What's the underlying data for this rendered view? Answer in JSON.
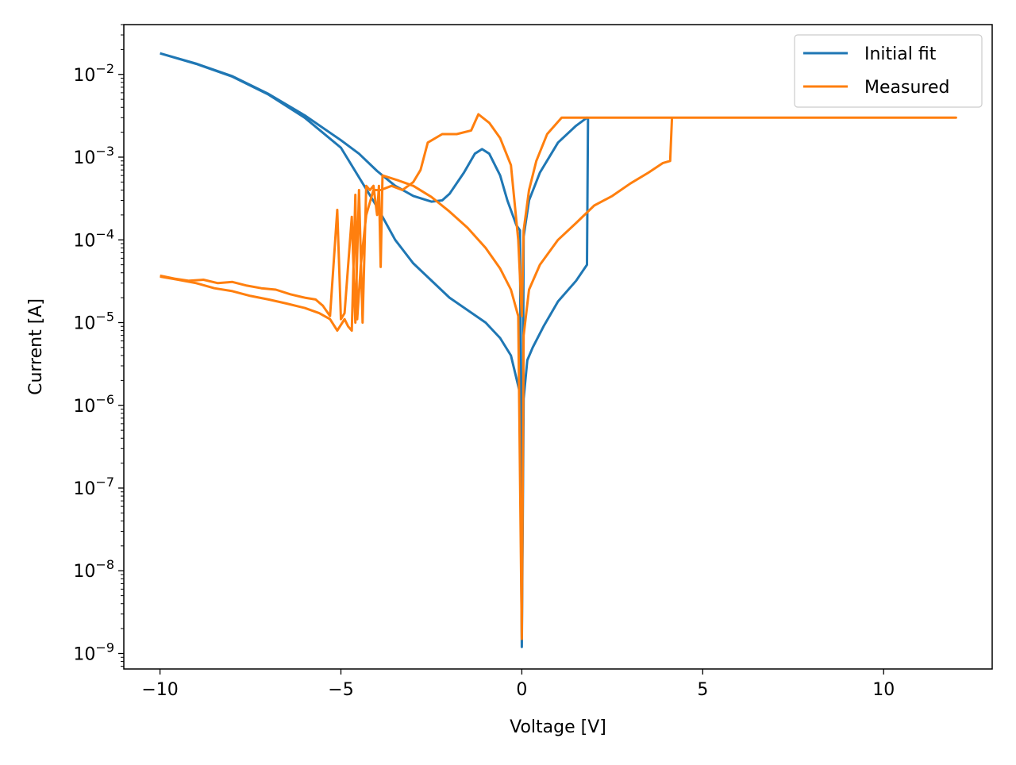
{
  "chart_data": {
    "type": "line",
    "xlabel": "Voltage [V]",
    "ylabel": "Current [A]",
    "xlim": [
      -11.0,
      13.0
    ],
    "ylim": [
      6.5e-10,
      0.04
    ],
    "yscale": "log",
    "grid": false,
    "legend_position": "top-right",
    "x_ticks": [
      -10,
      -5,
      0,
      5,
      10
    ],
    "x_tick_labels": [
      "−10",
      "−5",
      "0",
      "5",
      "10"
    ],
    "y_ticks": [
      1e-09,
      1e-08,
      1e-07,
      1e-06,
      1e-05,
      0.0001,
      0.001,
      0.01
    ],
    "y_tick_exponents": [
      "−9",
      "−8",
      "−7",
      "−6",
      "−5",
      "−4",
      "−3",
      "−2"
    ],
    "y_tick_base": "10",
    "series": [
      {
        "name": "Initial fit",
        "color": "#1f77b4",
        "points": [
          [
            -10,
            0.018
          ],
          [
            -9,
            0.0135
          ],
          [
            -8,
            0.0095
          ],
          [
            -7,
            0.0058
          ],
          [
            -6,
            0.0032
          ],
          [
            -5,
            0.0016
          ],
          [
            -4.5,
            0.0011
          ],
          [
            -4,
            0.00068
          ],
          [
            -3.5,
            0.00045
          ],
          [
            -3,
            0.00034
          ],
          [
            -2.5,
            0.00029
          ],
          [
            -2.2,
            0.0003
          ],
          [
            -2,
            0.00036
          ],
          [
            -1.6,
            0.00065
          ],
          [
            -1.3,
            0.0011
          ],
          [
            -1.1,
            0.00125
          ],
          [
            -0.9,
            0.0011
          ],
          [
            -0.6,
            0.0006
          ],
          [
            -0.4,
            0.0003
          ],
          [
            -0.15,
            0.00015
          ],
          [
            -0.05,
            0.00013
          ],
          [
            0,
            1.2e-09
          ],
          [
            0.05,
            0.00011
          ],
          [
            0.2,
            0.0003
          ],
          [
            0.5,
            0.00065
          ],
          [
            1,
            0.0015
          ],
          [
            1.5,
            0.0024
          ],
          [
            1.8,
            0.003
          ],
          [
            1.83,
            0.0029
          ],
          [
            1.8,
            5e-05
          ],
          [
            1.5,
            3.2e-05
          ],
          [
            1,
            1.8e-05
          ],
          [
            0.6,
            9e-06
          ],
          [
            0.3,
            5e-06
          ],
          [
            0.15,
            3.5e-06
          ],
          [
            0.05,
            1.2e-06
          ],
          [
            0,
            1.2e-09
          ],
          [
            -0.05,
            1.4e-06
          ],
          [
            -0.3,
            4e-06
          ],
          [
            -0.6,
            6.5e-06
          ],
          [
            -1,
            1e-05
          ],
          [
            -2,
            2e-05
          ],
          [
            -3,
            5.2e-05
          ],
          [
            -3.5,
            0.0001
          ],
          [
            -4,
            0.00025
          ],
          [
            -5,
            0.0013
          ],
          [
            -6,
            0.003
          ],
          [
            -7,
            0.0057
          ],
          [
            -8,
            0.0094
          ],
          [
            -9,
            0.0134
          ],
          [
            -10,
            0.018
          ]
        ]
      },
      {
        "name": "Measured",
        "color": "#ff7f0e",
        "points": [
          [
            -10,
            3.7e-05
          ],
          [
            -9.6,
            3.4e-05
          ],
          [
            -9.2,
            3.2e-05
          ],
          [
            -8.8,
            3.3e-05
          ],
          [
            -8.4,
            3e-05
          ],
          [
            -8,
            3.1e-05
          ],
          [
            -7.6,
            2.8e-05
          ],
          [
            -7.2,
            2.6e-05
          ],
          [
            -6.8,
            2.5e-05
          ],
          [
            -6.4,
            2.2e-05
          ],
          [
            -6,
            2e-05
          ],
          [
            -5.7,
            1.9e-05
          ],
          [
            -5.5,
            1.6e-05
          ],
          [
            -5.3,
            1.2e-05
          ],
          [
            -5.1,
            0.00023
          ],
          [
            -5,
            1.1e-05
          ],
          [
            -4.9,
            1.3e-05
          ],
          [
            -4.7,
            0.00019
          ],
          [
            -4.6,
            1e-05
          ],
          [
            -4.5,
            0.0004
          ],
          [
            -4.4,
            1e-05
          ],
          [
            -4.3,
            0.00045
          ],
          [
            -4.2,
            0.0004
          ],
          [
            -4.1,
            0.00045
          ],
          [
            -4.0,
            0.0002
          ],
          [
            -3.95,
            0.00045
          ],
          [
            -3.9,
            4.7e-05
          ],
          [
            -3.85,
            0.0006
          ],
          [
            -3.4,
            0.00052
          ],
          [
            -3,
            0.00045
          ],
          [
            -2.5,
            0.00033
          ],
          [
            -2,
            0.00022
          ],
          [
            -1.5,
            0.00014
          ],
          [
            -1,
            8e-05
          ],
          [
            -0.6,
            4.5e-05
          ],
          [
            -0.3,
            2.5e-05
          ],
          [
            -0.1,
            1.2e-05
          ],
          [
            0,
            1.5e-09
          ],
          [
            0.05,
            7e-06
          ],
          [
            0.2,
            2.5e-05
          ],
          [
            0.5,
            5e-05
          ],
          [
            1,
            0.0001
          ],
          [
            1.5,
            0.00016
          ],
          [
            2,
            0.00026
          ],
          [
            2.5,
            0.00034
          ],
          [
            3,
            0.00048
          ],
          [
            3.5,
            0.00065
          ],
          [
            3.9,
            0.00085
          ],
          [
            4.1,
            0.0009
          ],
          [
            4.15,
            0.003
          ],
          [
            6,
            0.003
          ],
          [
            8,
            0.003
          ],
          [
            10,
            0.003
          ],
          [
            12,
            0.003
          ],
          [
            10,
            0.003
          ],
          [
            6,
            0.003
          ],
          [
            2,
            0.003
          ],
          [
            1.1,
            0.003
          ],
          [
            0.7,
            0.0019
          ],
          [
            0.4,
            0.0009
          ],
          [
            0.2,
            0.0004
          ],
          [
            0.05,
            0.00013
          ],
          [
            0,
            1.2e-05
          ],
          [
            -0.1,
            0.0001
          ],
          [
            -0.3,
            0.0008
          ],
          [
            -0.6,
            0.0017
          ],
          [
            -0.9,
            0.0026
          ],
          [
            -1.2,
            0.0033
          ],
          [
            -1.4,
            0.0021
          ],
          [
            -1.8,
            0.0019
          ],
          [
            -2.2,
            0.0019
          ],
          [
            -2.6,
            0.0015
          ],
          [
            -2.8,
            0.0007
          ],
          [
            -3.0,
            0.0005
          ],
          [
            -3.3,
            0.0004
          ],
          [
            -3.6,
            0.00045
          ],
          [
            -3.9,
            0.0004
          ],
          [
            -4.1,
            0.0004
          ],
          [
            -4.3,
            0.0002
          ],
          [
            -4.45,
            5e-05
          ],
          [
            -4.55,
            1.1e-05
          ],
          [
            -4.6,
            0.00035
          ],
          [
            -4.7,
            8e-06
          ],
          [
            -4.8,
            9e-06
          ],
          [
            -4.9,
            1.1e-05
          ],
          [
            -5.1,
            8e-06
          ],
          [
            -5.3,
            1.1e-05
          ],
          [
            -5.6,
            1.3e-05
          ],
          [
            -6,
            1.5e-05
          ],
          [
            -6.5,
            1.7e-05
          ],
          [
            -7,
            1.9e-05
          ],
          [
            -7.5,
            2.1e-05
          ],
          [
            -8,
            2.4e-05
          ],
          [
            -8.5,
            2.6e-05
          ],
          [
            -9,
            3e-05
          ],
          [
            -9.5,
            3.3e-05
          ],
          [
            -10,
            3.6e-05
          ]
        ]
      }
    ]
  }
}
